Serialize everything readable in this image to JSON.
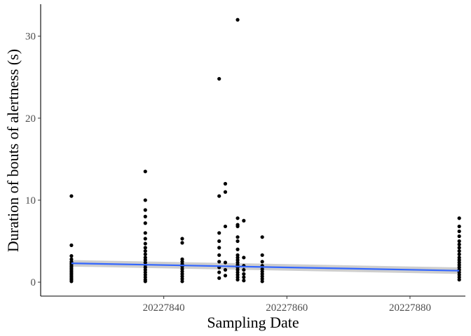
{
  "chart_data": {
    "type": "scatter",
    "title": "",
    "xlabel": "Sampling Date",
    "ylabel": "Duration of bouts of alertness (s)",
    "xlim": [
      20227820,
      20227889
    ],
    "ylim": [
      -1.7,
      33.9
    ],
    "x_ticks": [
      20227840,
      20227860,
      20227880
    ],
    "y_ticks": [
      0,
      10,
      20,
      30
    ],
    "grid": false,
    "legend": "none",
    "point_color": "#000000",
    "smooth_color": "#3366ff",
    "ribbon_color": "#bdbdbd",
    "groups": [
      {
        "x": 20227825,
        "values": [
          10.5,
          4.5,
          3.2,
          2.8,
          2.5,
          2.3,
          2.1,
          1.9,
          1.7,
          1.5,
          1.3,
          1.1,
          0.9,
          0.7,
          0.5,
          0.3,
          0.1
        ]
      },
      {
        "x": 20227837,
        "values": [
          13.5,
          10.0,
          8.8,
          8.0,
          7.2,
          6.0,
          5.3,
          4.7,
          4.2,
          3.8,
          3.4,
          3.0,
          2.7,
          2.4,
          2.1,
          1.8,
          1.5,
          1.2,
          0.9,
          0.6,
          0.3,
          0.1
        ]
      },
      {
        "x": 20227843,
        "values": [
          5.3,
          4.8,
          2.8,
          2.5,
          2.2,
          1.9,
          1.6,
          1.3,
          1.0,
          0.7,
          0.4,
          0.1
        ]
      },
      {
        "x": 20227849,
        "values": [
          24.8,
          10.5,
          6.0,
          5.0,
          4.2,
          3.3,
          2.5,
          1.8,
          1.2,
          0.5
        ]
      },
      {
        "x": 20227850,
        "values": [
          12.0,
          11.0,
          6.8,
          2.4,
          1.5,
          0.8
        ]
      },
      {
        "x": 20227852,
        "values": [
          32.0,
          7.8,
          7.0,
          6.8,
          5.5,
          5.0,
          4.0,
          3.3,
          3.0,
          2.7,
          2.4,
          2.1,
          1.8,
          1.5,
          1.2,
          0.9,
          0.6,
          0.3
        ]
      },
      {
        "x": 20227853,
        "values": [
          7.5,
          3.0,
          2.0,
          1.5,
          1.0,
          0.6,
          0.2
        ]
      },
      {
        "x": 20227856,
        "values": [
          5.5,
          3.3,
          2.5,
          2.0,
          1.6,
          1.3,
          1.0,
          0.7,
          0.4,
          0.1
        ]
      },
      {
        "x": 20227888,
        "values": [
          7.8,
          6.8,
          6.2,
          5.6,
          5.0,
          4.6,
          4.2,
          3.8,
          3.4,
          3.0,
          2.7,
          2.4,
          2.1,
          1.8,
          1.5,
          1.2,
          0.9,
          0.6,
          0.3
        ]
      }
    ],
    "smooth_line": [
      {
        "x": 20227825,
        "y": 2.3,
        "lo": 1.9,
        "hi": 2.7
      },
      {
        "x": 20227888,
        "y": 1.4,
        "lo": 1.0,
        "hi": 1.8
      }
    ]
  }
}
